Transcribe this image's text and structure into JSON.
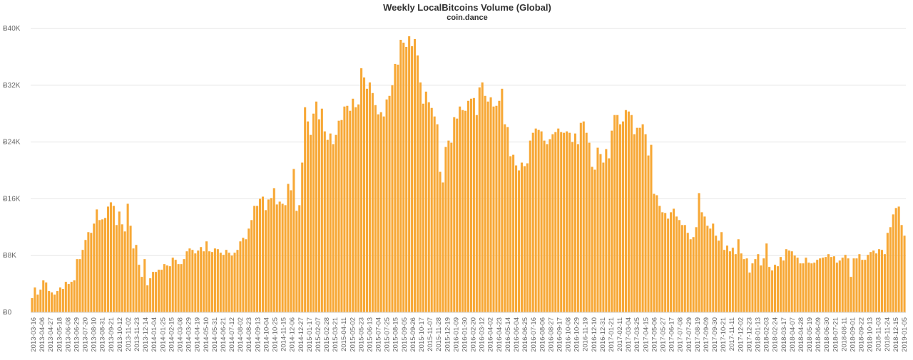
{
  "title": "Weekly LocalBitcoins Volume (Global)",
  "subtitle": "coin.dance",
  "colors": {
    "bar": "#F7A836",
    "grid": "#e6e6e6",
    "axis_text": "#666666"
  },
  "chart_data": {
    "type": "bar",
    "title": "Weekly LocalBitcoins Volume (Global)",
    "subtitle": "coin.dance",
    "xlabel": "",
    "ylabel": "",
    "ylim": [
      0,
      40000
    ],
    "yticks": [
      0,
      8000,
      16000,
      24000,
      32000,
      40000
    ],
    "ytick_labels": [
      "Ƀ0",
      "Ƀ8K",
      "Ƀ16K",
      "Ƀ24K",
      "Ƀ32K",
      "Ƀ40K"
    ],
    "grid": true,
    "xtick_labels": [
      "2013-03-16",
      "2013-04-06",
      "2013-04-27",
      "2013-05-18",
      "2013-06-08",
      "2013-06-29",
      "2013-07-20",
      "2013-08-10",
      "2013-08-31",
      "2013-09-21",
      "2013-10-12",
      "2013-11-02",
      "2013-11-23",
      "2013-12-14",
      "2014-01-04",
      "2014-01-25",
      "2014-02-15",
      "2014-03-08",
      "2014-03-29",
      "2014-04-19",
      "2014-05-10",
      "2014-05-31",
      "2014-06-21",
      "2014-07-12",
      "2014-08-02",
      "2014-08-23",
      "2014-09-13",
      "2014-10-04",
      "2014-10-25",
      "2014-11-15",
      "2014-12-06",
      "2014-12-27",
      "2015-01-17",
      "2015-02-07",
      "2015-02-28",
      "2015-03-21",
      "2015-04-11",
      "2015-05-02",
      "2015-05-23",
      "2015-06-13",
      "2015-07-04",
      "2015-07-25",
      "2015-08-15",
      "2015-09-05",
      "2015-09-26",
      "2015-10-17",
      "2015-11-07",
      "2015-11-28",
      "2015-12-19",
      "2016-01-09",
      "2016-01-30",
      "2016-02-20",
      "2016-03-12",
      "2016-04-02",
      "2016-04-23",
      "2016-05-14",
      "2016-06-04",
      "2016-06-25",
      "2016-07-16",
      "2016-08-06",
      "2016-08-27",
      "2016-09-17",
      "2016-10-08",
      "2016-10-29",
      "2016-11-19",
      "2016-12-10",
      "2016-12-31",
      "2017-01-21",
      "2017-02-11",
      "2017-03-04",
      "2017-03-25",
      "2017-04-15",
      "2017-05-06",
      "2017-05-27",
      "2017-06-17",
      "2017-07-08",
      "2017-07-29",
      "2017-08-19",
      "2017-09-09",
      "2017-09-30",
      "2017-10-21",
      "2017-11-11",
      "2017-12-02",
      "2017-12-23",
      "2018-01-13",
      "2018-02-03",
      "2018-02-24",
      "2018-03-17",
      "2018-04-07",
      "2018-04-28",
      "2018-05-19",
      "2018-06-09",
      "2018-06-30",
      "2018-07-21",
      "2018-08-11",
      "2018-09-01",
      "2018-09-22",
      "2018-10-13",
      "2018-11-03",
      "2018-11-24",
      "2018-12-15",
      "2019-01-05"
    ],
    "values": [
      2000,
      3500,
      2500,
      3200,
      4500,
      4200,
      3000,
      2800,
      2500,
      3000,
      3500,
      3300,
      4300,
      4000,
      4300,
      4500,
      7500,
      7500,
      8800,
      10200,
      11300,
      11200,
      12500,
      14500,
      13000,
      13100,
      13300,
      14900,
      15500,
      15000,
      12300,
      14200,
      12400,
      11400,
      15300,
      12200,
      9000,
      9500,
      6700,
      5000,
      7500,
      3800,
      4800,
      5700,
      5700,
      6000,
      6000,
      6800,
      6600,
      6500,
      7700,
      7400,
      6800,
      6800,
      7500,
      8600,
      9000,
      8800,
      8300,
      8700,
      9200,
      8600,
      10000,
      8600,
      8500,
      9000,
      8900,
      8400,
      8100,
      8800,
      8400,
      8000,
      8400,
      8800,
      10000,
      10500,
      10300,
      11800,
      13000,
      15000,
      15000,
      16000,
      16300,
      14400,
      15900,
      16100,
      17500,
      15200,
      15600,
      15300,
      15100,
      18100,
      17200,
      20200,
      14300,
      15100,
      21100,
      28900,
      26900,
      25000,
      28000,
      29700,
      27200,
      28700,
      25500,
      24300,
      25200,
      23700,
      25000,
      27000,
      27100,
      29000,
      29100,
      28400,
      30100,
      28900,
      29300,
      34400,
      33100,
      31500,
      32400,
      30900,
      29200,
      27900,
      28200,
      27600,
      30000,
      30500,
      32000,
      35000,
      34900,
      38400,
      38000,
      37400,
      38900,
      37500,
      38500,
      36200,
      32400,
      29400,
      31100,
      29600,
      28800,
      27600,
      26500,
      19800,
      18300,
      23300,
      24200,
      23900,
      27500,
      27300,
      29000,
      28500,
      28400,
      29800,
      30100,
      30200,
      27800,
      31700,
      32400,
      30500,
      29700,
      30300,
      29000,
      29100,
      29800,
      31500,
      26500,
      26100,
      22000,
      22200,
      20700,
      20000,
      21100,
      20600,
      21000,
      24200,
      25300,
      25900,
      25700,
      25500,
      24200,
      23700,
      24400,
      25100,
      25400,
      25900,
      25400,
      25300,
      25500,
      25300,
      24000,
      25200,
      23700,
      26700,
      26900,
      25300,
      23900,
      20500,
      20100,
      23200,
      22300,
      21100,
      23000,
      21700,
      25600,
      27800,
      27800,
      26500,
      26900,
      28500,
      28300,
      27800,
      25100,
      26000,
      26000,
      26500,
      25100,
      22100,
      23600,
      16700,
      16500,
      15000,
      14100,
      14000,
      13200,
      14100,
      14600,
      13500,
      13000,
      12300,
      12300,
      11200,
      10300,
      10600,
      12000,
      16800,
      14100,
      13500,
      12200,
      11800,
      12500,
      10800,
      10100,
      11300,
      8800,
      9400,
      8600,
      9100,
      8200,
      10300,
      8300,
      7500,
      7600,
      5600,
      6900,
      7500,
      8200,
      6600,
      7600,
      9700,
      6400,
      5900,
      6700,
      6500,
      7800,
      7300,
      8900,
      8700,
      8600,
      8000,
      7700,
      6900,
      6900,
      7700,
      7000,
      6900,
      7000,
      7400,
      7600,
      7700,
      7800,
      8200,
      7800,
      7900,
      7000,
      7300,
      7700,
      8100,
      7600,
      5000,
      7600,
      7600,
      8200,
      7400,
      7400,
      8100,
      8500,
      8700,
      8300,
      8900,
      8800,
      8200,
      11200,
      12000,
      13800,
      14700,
      14900,
      12300,
      10800
    ]
  }
}
